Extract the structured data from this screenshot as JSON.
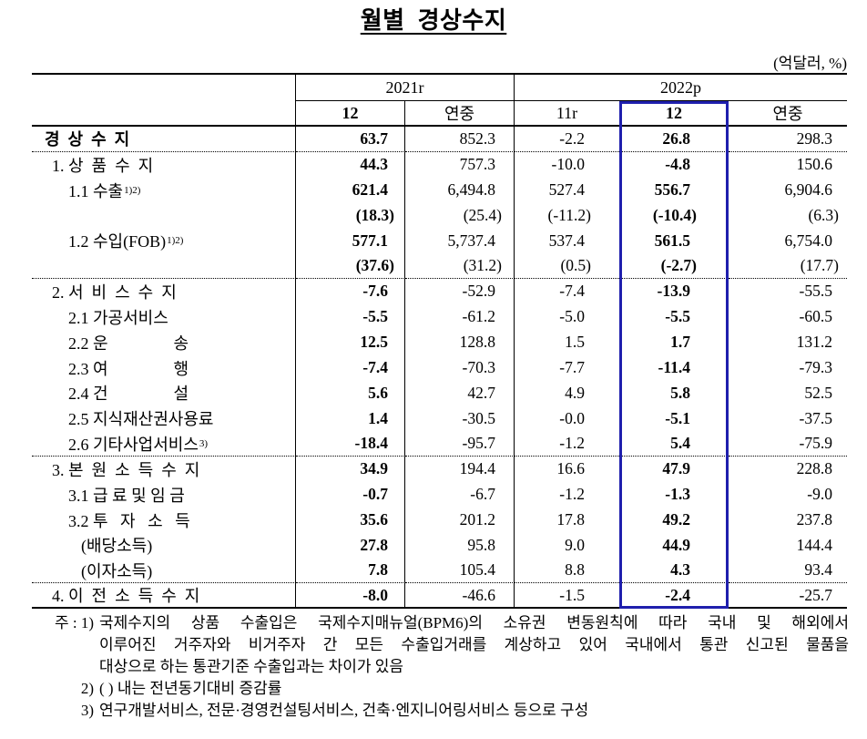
{
  "title": "월별  경상수지",
  "unit_label": "(억달러, %)",
  "colors": {
    "accent": "#1f1fad",
    "text": "#000000"
  },
  "table": {
    "col_groups": [
      {
        "label": "2021r"
      },
      {
        "label": "2022p"
      }
    ],
    "col_headers": [
      {
        "label": "12",
        "bold": true,
        "highlighted": false
      },
      {
        "label": "연중",
        "bold": false,
        "highlighted": false
      },
      {
        "label": "11r",
        "bold": false,
        "highlighted": false
      },
      {
        "label": "12",
        "bold": true,
        "highlighted": true
      },
      {
        "label": "연중",
        "bold": false,
        "highlighted": false
      }
    ],
    "rows": [
      {
        "label": "경  상  수  지",
        "indent": 0,
        "bold_label": true,
        "sup": "",
        "values": [
          "63.7",
          "852.3",
          "-2.2",
          "26.8",
          "298.3"
        ],
        "sep_after": "dotted"
      },
      {
        "label": "1. 상  품  수  지",
        "indent": 1,
        "bold_label": false,
        "sup": "",
        "values": [
          "44.3",
          "757.3",
          "-10.0",
          "-4.8",
          "150.6"
        ],
        "sep_after": ""
      },
      {
        "label": "1.1 수출",
        "indent": 2,
        "bold_label": false,
        "sup": "1)2)",
        "values": [
          "621.4",
          "6,494.8",
          "527.4",
          "556.7",
          "6,904.6"
        ],
        "sep_after": ""
      },
      {
        "label": "",
        "indent": 2,
        "bold_label": false,
        "sup": "",
        "values": [
          "(18.3)",
          "(25.4)",
          "(-11.2)",
          "(-10.4)",
          "(6.3)"
        ],
        "sep_after": ""
      },
      {
        "label": "1.2 수입(FOB)",
        "indent": 2,
        "bold_label": false,
        "sup": "1)2)",
        "values": [
          "577.1",
          "5,737.4",
          "537.4",
          "561.5",
          "6,754.0"
        ],
        "sep_after": ""
      },
      {
        "label": "",
        "indent": 2,
        "bold_label": false,
        "sup": "",
        "values": [
          "(37.6)",
          "(31.2)",
          "(0.5)",
          "(-2.7)",
          "(17.7)"
        ],
        "sep_after": "dotted"
      },
      {
        "label": "2. 서  비  스  수  지",
        "indent": 1,
        "bold_label": false,
        "sup": "",
        "values": [
          "-7.6",
          "-52.9",
          "-7.4",
          "-13.9",
          "-55.5"
        ],
        "sep_after": ""
      },
      {
        "label": "2.1 가공서비스",
        "indent": 2,
        "bold_label": false,
        "sup": "",
        "values": [
          "-5.5",
          "-61.2",
          "-5.0",
          "-5.5",
          "-60.5"
        ],
        "sep_after": ""
      },
      {
        "label": "2.2 운                송",
        "indent": 2,
        "bold_label": false,
        "sup": "",
        "values": [
          "12.5",
          "128.8",
          "1.5",
          "1.7",
          "131.2"
        ],
        "sep_after": ""
      },
      {
        "label": "2.3 여                행",
        "indent": 2,
        "bold_label": false,
        "sup": "",
        "values": [
          "-7.4",
          "-70.3",
          "-7.7",
          "-11.4",
          "-79.3"
        ],
        "sep_after": ""
      },
      {
        "label": "2.4 건                설",
        "indent": 2,
        "bold_label": false,
        "sup": "",
        "values": [
          "5.6",
          "42.7",
          "4.9",
          "5.8",
          "52.5"
        ],
        "sep_after": ""
      },
      {
        "label": "2.5 지식재산권사용료",
        "indent": 2,
        "bold_label": false,
        "sup": "",
        "values": [
          "1.4",
          "-30.5",
          "-0.0",
          "-5.1",
          "-37.5"
        ],
        "sep_after": ""
      },
      {
        "label": "2.6 기타사업서비스",
        "indent": 2,
        "bold_label": false,
        "sup": "3)",
        "values": [
          "-18.4",
          "-95.7",
          "-1.2",
          "5.4",
          "-75.9"
        ],
        "sep_after": "dotted"
      },
      {
        "label": "3. 본  원  소  득  수  지",
        "indent": 1,
        "bold_label": false,
        "sup": "",
        "values": [
          "34.9",
          "194.4",
          "16.6",
          "47.9",
          "228.8"
        ],
        "sep_after": ""
      },
      {
        "label": "3.1 급 료 및 임 금",
        "indent": 2,
        "bold_label": false,
        "sup": "",
        "values": [
          "-0.7",
          "-6.7",
          "-1.2",
          "-1.3",
          "-9.0"
        ],
        "sep_after": ""
      },
      {
        "label": "3.2 투   자   소   득",
        "indent": 2,
        "bold_label": false,
        "sup": "",
        "values": [
          "35.6",
          "201.2",
          "17.8",
          "49.2",
          "237.8"
        ],
        "sep_after": ""
      },
      {
        "label": "(배당소득)",
        "indent": 3,
        "bold_label": false,
        "sup": "",
        "values": [
          "27.8",
          "95.8",
          "9.0",
          "44.9",
          "144.4"
        ],
        "sep_after": ""
      },
      {
        "label": "(이자소득)",
        "indent": 3,
        "bold_label": false,
        "sup": "",
        "values": [
          "7.8",
          "105.4",
          "8.8",
          "4.3",
          "93.4"
        ],
        "sep_after": "dotted"
      },
      {
        "label": "4. 이  전  소  득  수  지",
        "indent": 1,
        "bold_label": false,
        "sup": "",
        "values": [
          "-8.0",
          "-46.6",
          "-1.5",
          "-2.4",
          "-25.7"
        ],
        "sep_after": ""
      }
    ]
  },
  "notes": [
    {
      "marker": "주 : 1)",
      "justify_lines": 2,
      "lines": [
        "국제수지의 상품 수출입은 국제수지매뉴얼(BPM6)의 소유권 변동원칙에 따라 국내 및 해외에서",
        "이루어진 거주자와 비거주자 간 모든 수출입거래를 계상하고 있어 국내에서 통관 신고된 물품을",
        "대상으로 하는 통관기준 수출입과는 차이가 있음"
      ]
    },
    {
      "marker": "2)",
      "justify_lines": 0,
      "lines": [
        "(  ) 내는 전년동기대비 증감률"
      ]
    },
    {
      "marker": "3)",
      "justify_lines": 0,
      "lines": [
        "연구개발서비스, 전문·경영컨설팅서비스, 건축·엔지니어링서비스 등으로 구성"
      ]
    }
  ]
}
